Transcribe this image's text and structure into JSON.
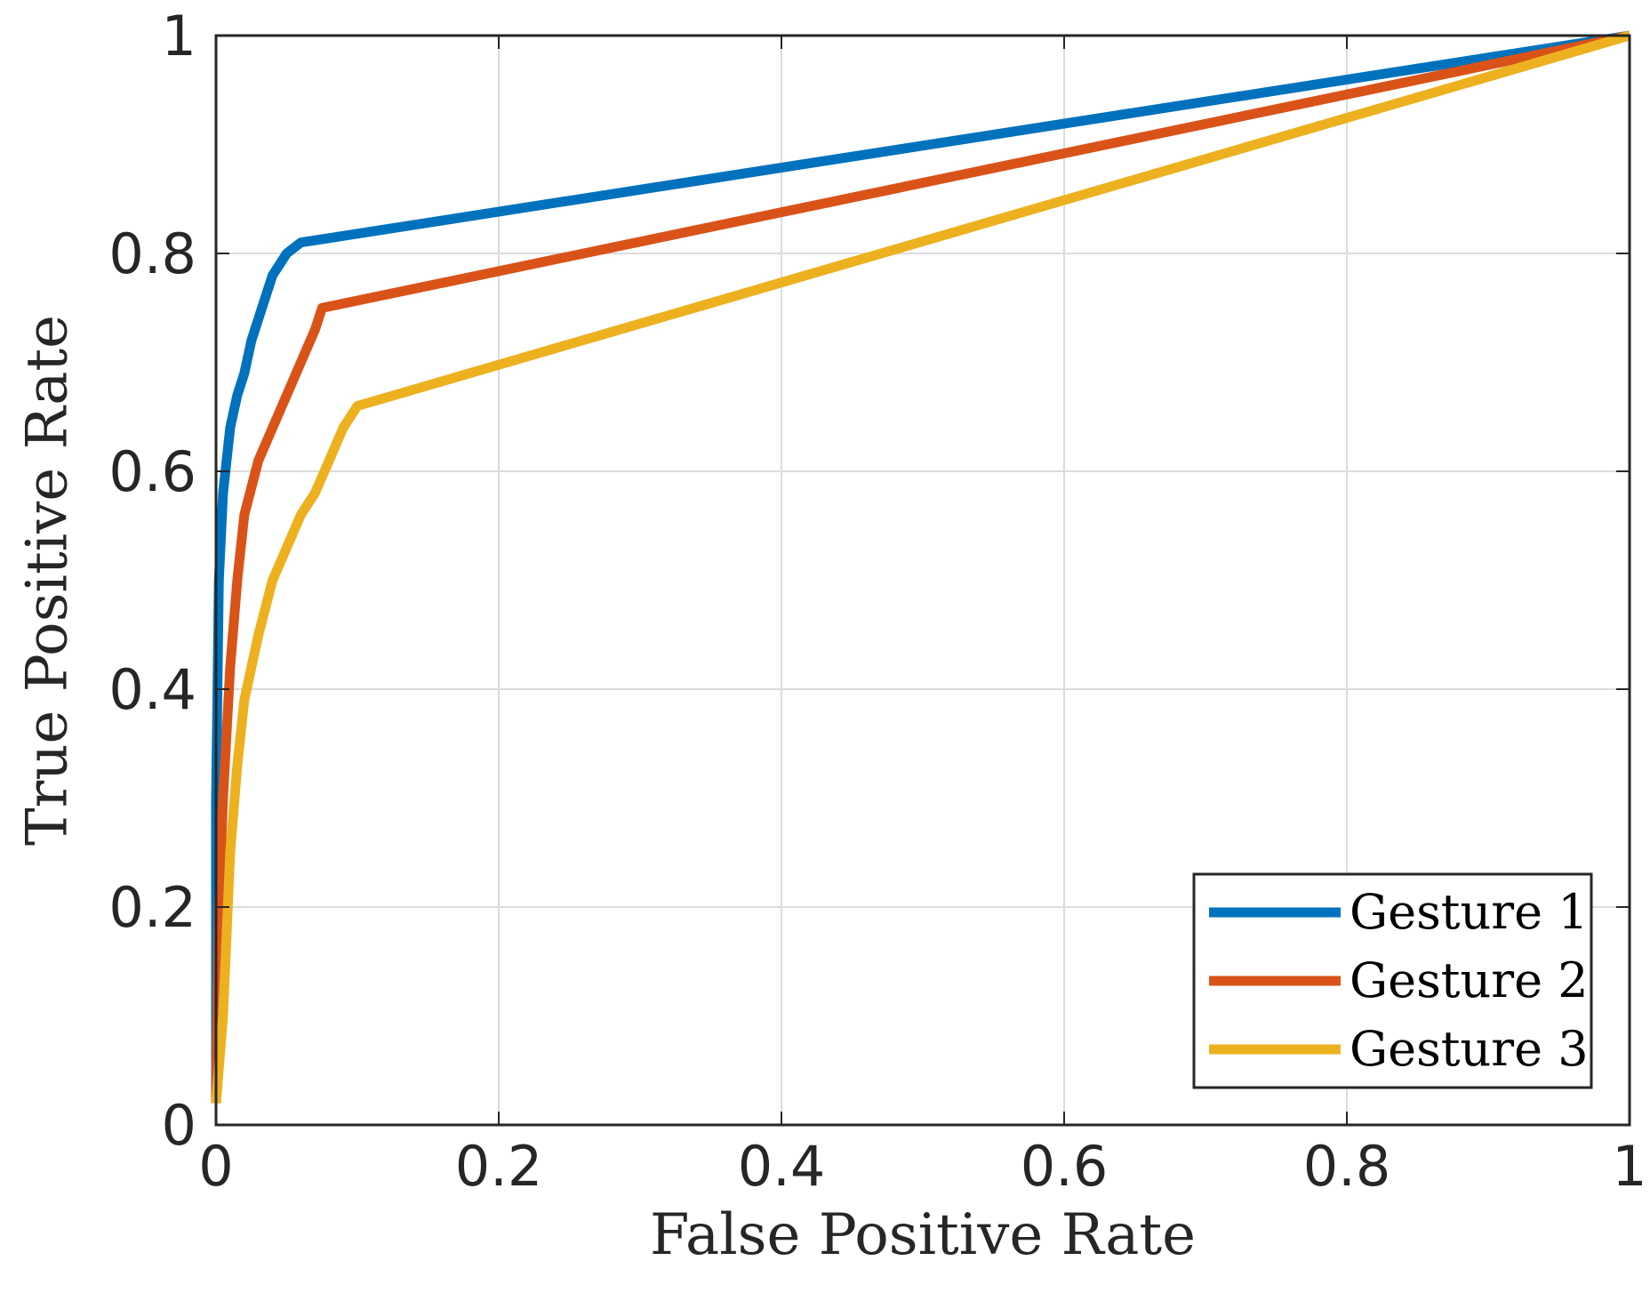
{
  "chart_data": {
    "type": "line",
    "title": "",
    "xlabel": "False Positive Rate",
    "ylabel": "True Positive Rate",
    "xlim": [
      0,
      1
    ],
    "ylim": [
      0,
      1
    ],
    "xticks": [
      0,
      0.2,
      0.4,
      0.6,
      0.8,
      1
    ],
    "yticks": [
      0,
      0.2,
      0.4,
      0.6,
      0.8,
      1
    ],
    "xtick_labels": [
      "0",
      "0.2",
      "0.4",
      "0.6",
      "0.8",
      "1"
    ],
    "ytick_labels": [
      "0",
      "0.2",
      "0.4",
      "0.6",
      "0.8",
      "1"
    ],
    "grid": true,
    "legend_position": "bottom-right",
    "series": [
      {
        "name": "Gesture 1",
        "color": "#0072BD",
        "points": [
          [
            0,
            0.02
          ],
          [
            0,
            0.3
          ],
          [
            0.002,
            0.5
          ],
          [
            0.005,
            0.58
          ],
          [
            0.01,
            0.64
          ],
          [
            0.015,
            0.67
          ],
          [
            0.02,
            0.69
          ],
          [
            0.025,
            0.72
          ],
          [
            0.03,
            0.74
          ],
          [
            0.035,
            0.76
          ],
          [
            0.04,
            0.78
          ],
          [
            0.045,
            0.79
          ],
          [
            0.05,
            0.8
          ],
          [
            0.06,
            0.81
          ],
          [
            1,
            1
          ]
        ]
      },
      {
        "name": "Gesture 2",
        "color": "#D95319",
        "points": [
          [
            0,
            0.02
          ],
          [
            0.002,
            0.2
          ],
          [
            0.005,
            0.3
          ],
          [
            0.01,
            0.42
          ],
          [
            0.015,
            0.5
          ],
          [
            0.02,
            0.56
          ],
          [
            0.03,
            0.61
          ],
          [
            0.04,
            0.64
          ],
          [
            0.05,
            0.67
          ],
          [
            0.06,
            0.7
          ],
          [
            0.07,
            0.73
          ],
          [
            0.075,
            0.75
          ],
          [
            1,
            1
          ]
        ]
      },
      {
        "name": "Gesture 3",
        "color": "#EDB120",
        "points": [
          [
            0,
            0.02
          ],
          [
            0.005,
            0.1
          ],
          [
            0.01,
            0.25
          ],
          [
            0.015,
            0.33
          ],
          [
            0.02,
            0.39
          ],
          [
            0.03,
            0.45
          ],
          [
            0.04,
            0.5
          ],
          [
            0.05,
            0.53
          ],
          [
            0.06,
            0.56
          ],
          [
            0.07,
            0.58
          ],
          [
            0.08,
            0.61
          ],
          [
            0.09,
            0.64
          ],
          [
            0.1,
            0.66
          ],
          [
            1,
            1
          ]
        ]
      }
    ]
  }
}
